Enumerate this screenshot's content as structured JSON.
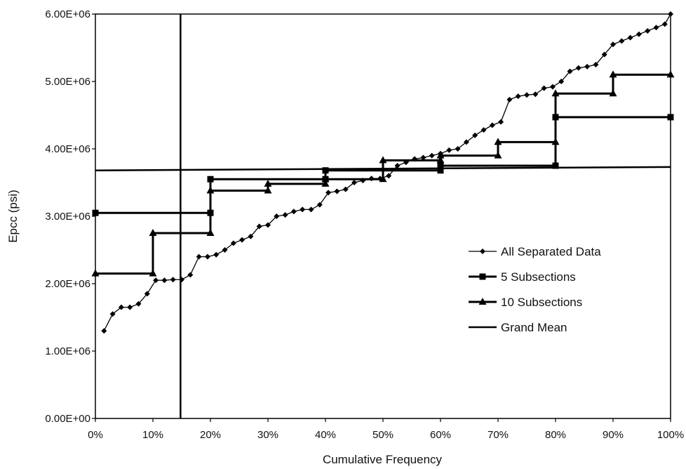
{
  "chart_data": {
    "type": "line",
    "title": "",
    "xlabel": "Cumulative Frequency",
    "ylabel": "Epcc (psi)",
    "xlim": [
      0,
      100
    ],
    "ylim": [
      0,
      6000000
    ],
    "x_ticks": [
      {
        "v": 0,
        "label": "0%"
      },
      {
        "v": 10,
        "label": "10%"
      },
      {
        "v": 20,
        "label": "20%"
      },
      {
        "v": 30,
        "label": "30%"
      },
      {
        "v": 40,
        "label": "40%"
      },
      {
        "v": 50,
        "label": "50%"
      },
      {
        "v": 60,
        "label": "60%"
      },
      {
        "v": 70,
        "label": "70%"
      },
      {
        "v": 80,
        "label": "80%"
      },
      {
        "v": 90,
        "label": "90%"
      },
      {
        "v": 100,
        "label": "100%"
      }
    ],
    "y_ticks": [
      {
        "v": 0,
        "label": "0.00E+00"
      },
      {
        "v": 1000000,
        "label": "1.00E+06"
      },
      {
        "v": 2000000,
        "label": "2.00E+06"
      },
      {
        "v": 3000000,
        "label": "3.00E+06"
      },
      {
        "v": 4000000,
        "label": "4.00E+06"
      },
      {
        "v": 5000000,
        "label": "5.00E+06"
      },
      {
        "v": 6000000,
        "label": "6.00E+06"
      }
    ],
    "grid": false,
    "legend_position": "right",
    "vertical_line_x": 14.8,
    "series": [
      {
        "name": "All Separated Data",
        "marker": "diamond",
        "x": [
          1.5,
          3,
          4.5,
          6,
          7.5,
          9,
          10.5,
          12,
          13.5,
          15,
          16.5,
          18,
          19.5,
          21,
          22.5,
          24,
          25.5,
          27,
          28.5,
          30,
          31.5,
          33,
          34.5,
          36,
          37.5,
          39,
          40.5,
          42,
          43.5,
          45,
          46.5,
          48,
          49.5,
          51,
          52.5,
          54,
          55.5,
          57,
          58.5,
          60,
          61.5,
          63,
          64.5,
          66,
          67.5,
          69,
          70.5,
          72,
          73.5,
          75,
          76.5,
          78,
          79.5,
          81,
          82.5,
          84,
          85.5,
          87,
          88.5,
          90,
          91.5,
          93,
          94.5,
          96,
          97.5,
          99,
          100
        ],
        "y": [
          1300000,
          1550000,
          1650000,
          1650000,
          1700000,
          1850000,
          2050000,
          2050000,
          2060000,
          2060000,
          2130000,
          2400000,
          2400000,
          2430000,
          2500000,
          2600000,
          2650000,
          2700000,
          2850000,
          2870000,
          3000000,
          3020000,
          3070000,
          3100000,
          3100000,
          3170000,
          3350000,
          3370000,
          3400000,
          3500000,
          3530000,
          3560000,
          3560000,
          3600000,
          3750000,
          3800000,
          3850000,
          3870000,
          3900000,
          3930000,
          3980000,
          4000000,
          4100000,
          4200000,
          4280000,
          4350000,
          4400000,
          4730000,
          4780000,
          4800000,
          4810000,
          4900000,
          4920000,
          5000000,
          5150000,
          5200000,
          5220000,
          5250000,
          5400000,
          5550000,
          5600000,
          5650000,
          5700000,
          5750000,
          5800000,
          5850000,
          6000000
        ]
      },
      {
        "name": "5 Subsections",
        "marker": "square",
        "x": [
          0,
          20,
          20,
          40,
          40,
          60,
          60,
          80,
          80,
          100
        ],
        "y": [
          3050000,
          3050000,
          3550000,
          3550000,
          3680000,
          3680000,
          3750000,
          3750000,
          4470000,
          4470000
        ]
      },
      {
        "name": "10 Subsections",
        "marker": "triangle",
        "x": [
          0,
          10,
          10,
          20,
          20,
          30,
          30,
          40,
          40,
          50,
          50,
          60,
          60,
          70,
          70,
          80,
          80,
          90,
          90,
          100
        ],
        "y": [
          2150000,
          2150000,
          2750000,
          2750000,
          3380000,
          3380000,
          3480000,
          3480000,
          3550000,
          3550000,
          3830000,
          3830000,
          3900000,
          3900000,
          4100000,
          4100000,
          4820000,
          4820000,
          5100000,
          5100000
        ]
      },
      {
        "name": "Grand Mean",
        "marker": "none",
        "x": [
          0,
          100
        ],
        "y": [
          3680000,
          3730000
        ]
      }
    ]
  }
}
